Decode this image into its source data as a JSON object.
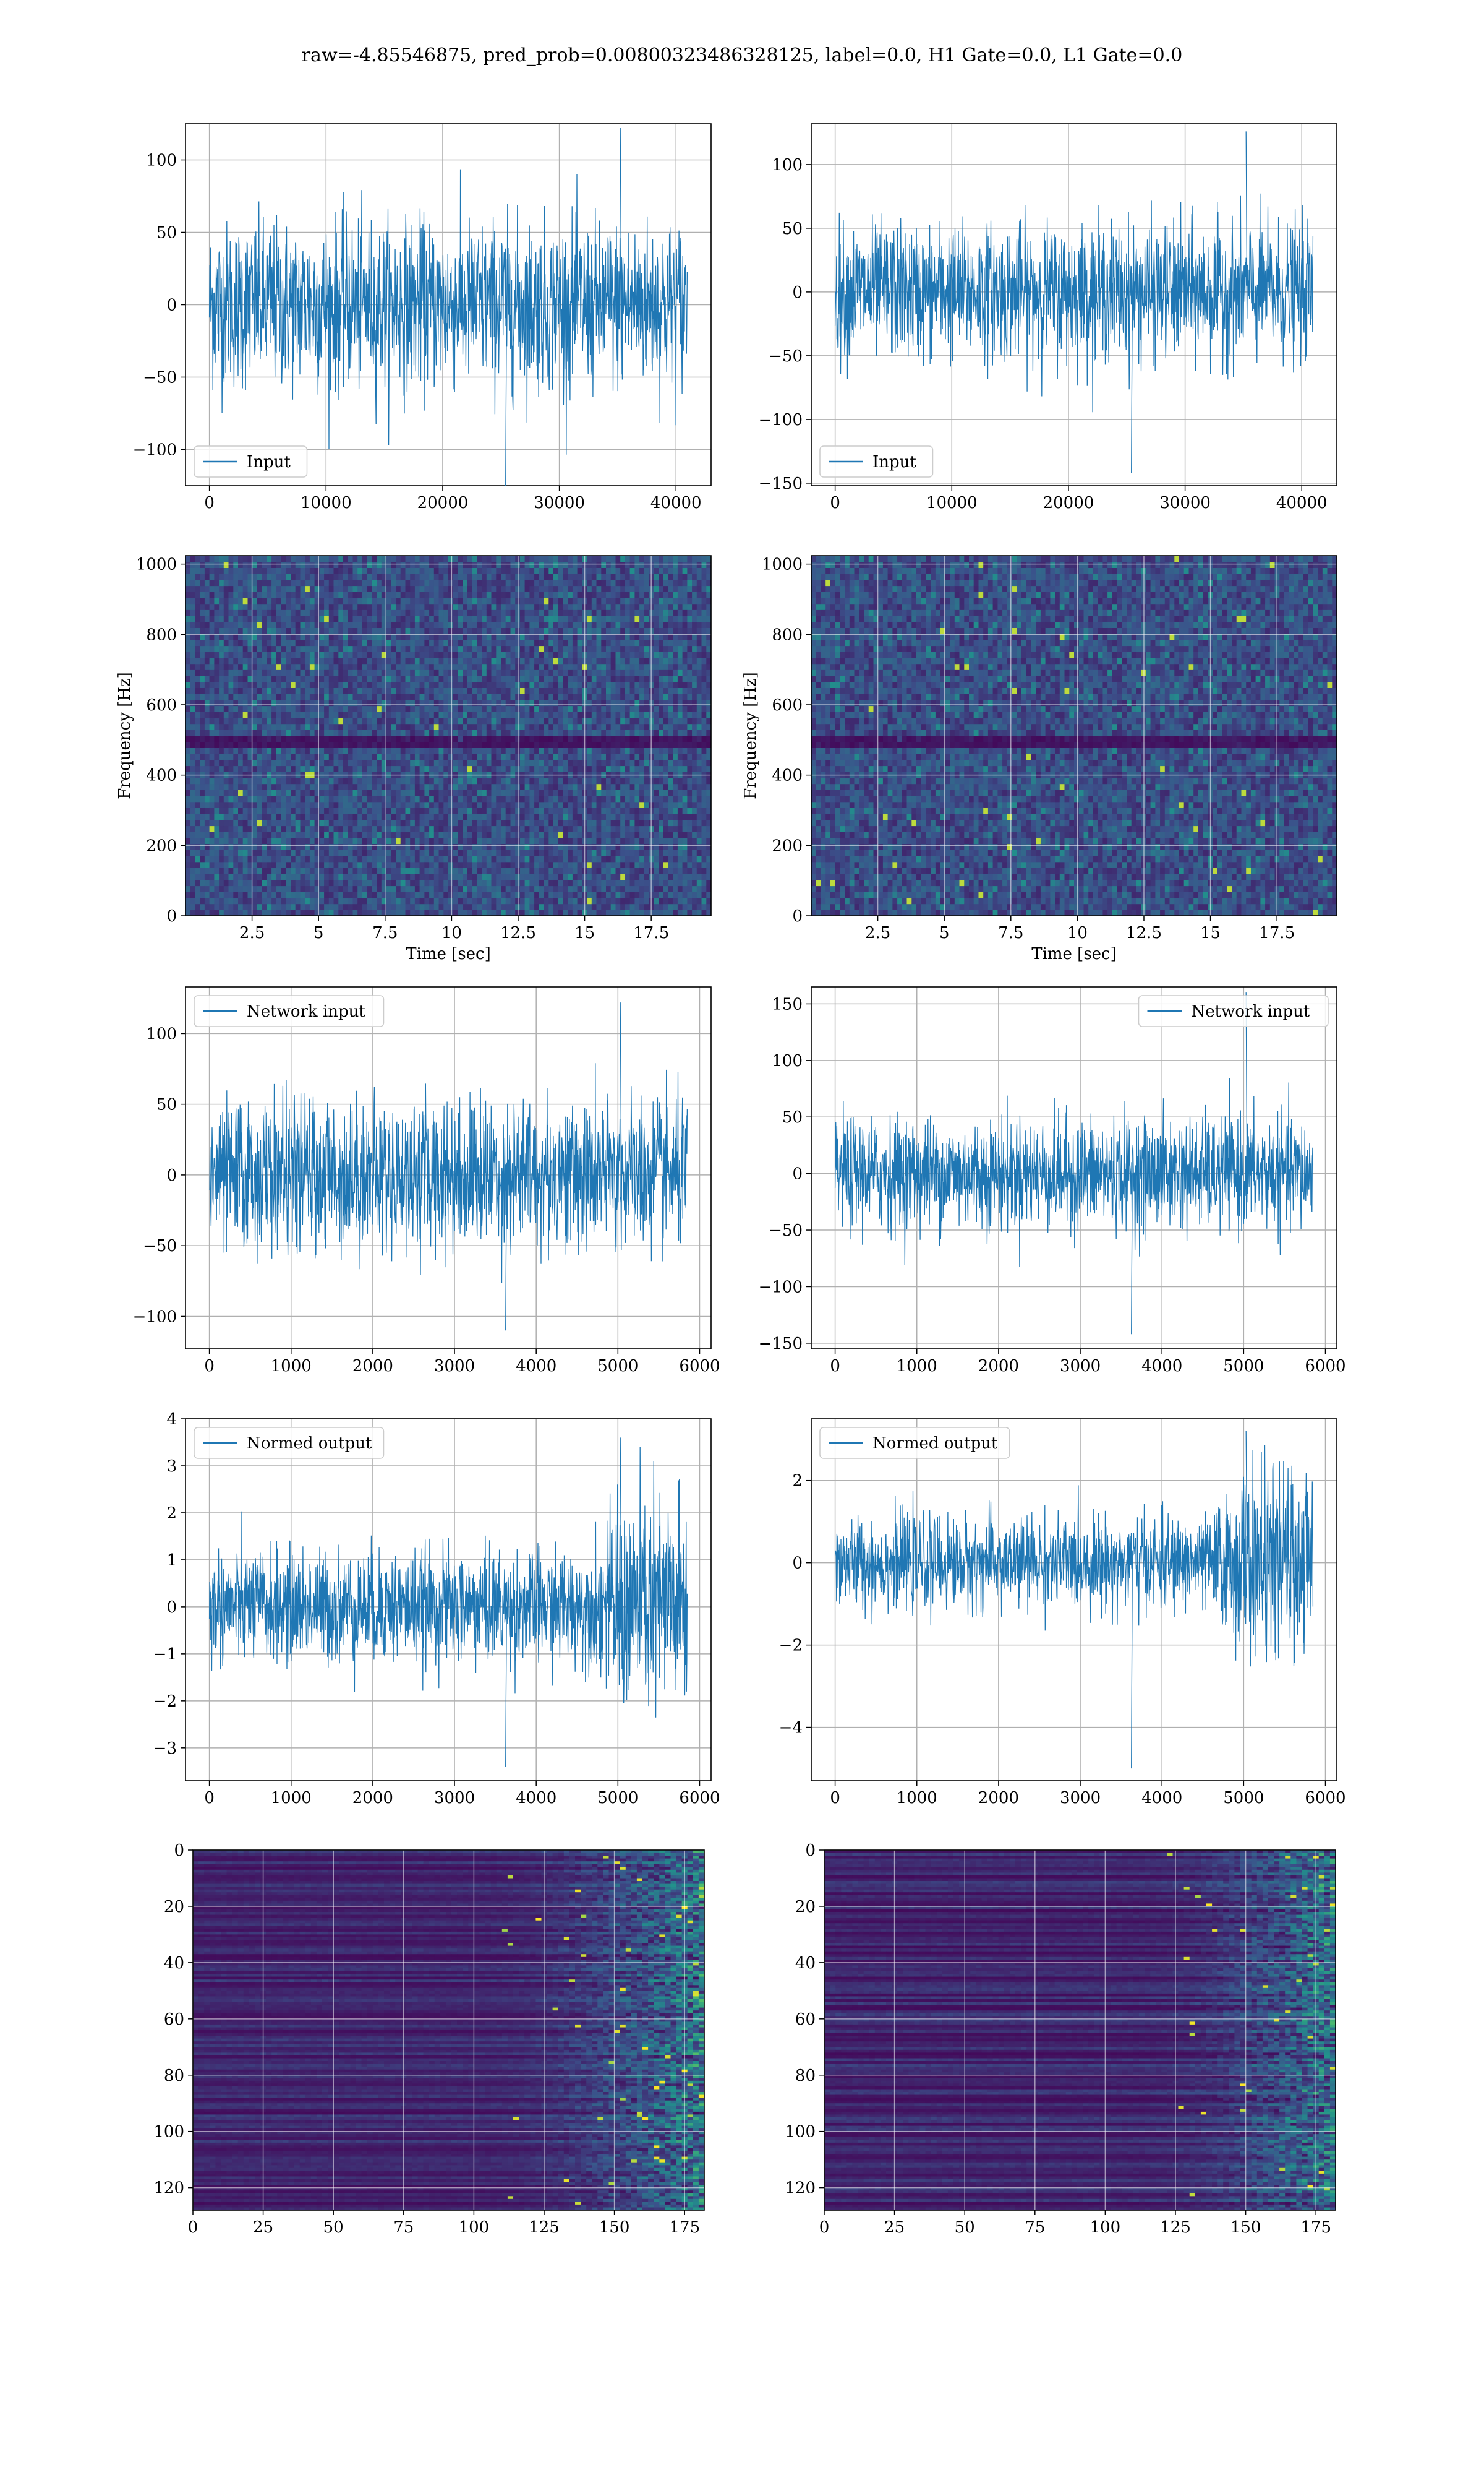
{
  "figure": {
    "title": "raw=-4.85546875, pred_prob=0.00800323486328125, label=0.0, H1 Gate=0.0, L1 Gate=0.0"
  },
  "colors": {
    "line": "#1f77b4",
    "grid": "#b0b0b0",
    "axes": "#000000",
    "heatmap_low": "#440154",
    "heatmap_mid": "#21918c",
    "heatmap_high": "#fde725"
  },
  "chart_data": [
    {
      "id": "input-h1",
      "type": "line",
      "legend": "Input",
      "legend_loc": "lower left",
      "grid": true,
      "xlim": [
        -2048,
        43008
      ],
      "ylim": [
        -125,
        125
      ],
      "xticks": [
        0,
        10000,
        20000,
        30000,
        40000
      ],
      "yticks": [
        -100,
        -50,
        0,
        50,
        100
      ],
      "x_range": [
        0,
        40960
      ],
      "envelope": [
        -65,
        68
      ],
      "spike": [
        -126,
        122
      ]
    },
    {
      "id": "input-l1",
      "type": "line",
      "legend": "Input",
      "legend_loc": "lower left",
      "grid": true,
      "xlim": [
        -2048,
        43008
      ],
      "ylim": [
        -152,
        132
      ],
      "xticks": [
        0,
        10000,
        20000,
        30000,
        40000
      ],
      "yticks": [
        -150,
        -100,
        -50,
        0,
        50,
        100
      ],
      "x_range": [
        0,
        40960
      ],
      "envelope": [
        -60,
        62
      ],
      "spike": [
        -142,
        126
      ]
    },
    {
      "id": "spec-h1",
      "type": "heatmap",
      "xlabel": "Time [sec]",
      "ylabel": "Frequency [Hz]",
      "grid": true,
      "xlim": [
        0,
        19.75
      ],
      "ylim": [
        0,
        1024
      ],
      "xticks": [
        2.5,
        5.0,
        7.5,
        10.0,
        12.5,
        15.0,
        17.5
      ],
      "yticks": [
        0,
        200,
        400,
        600,
        800,
        1000
      ],
      "dark_band": [
        480,
        520
      ]
    },
    {
      "id": "spec-l1",
      "type": "heatmap",
      "xlabel": "Time [sec]",
      "ylabel": "Frequency [Hz]",
      "grid": true,
      "xlim": [
        0,
        19.75
      ],
      "ylim": [
        0,
        1024
      ],
      "xticks": [
        2.5,
        5.0,
        7.5,
        10.0,
        12.5,
        15.0,
        17.5
      ],
      "yticks": [
        0,
        200,
        400,
        600,
        800,
        1000
      ],
      "dark_band": [
        480,
        515
      ]
    },
    {
      "id": "net-h1",
      "type": "line",
      "legend": "Network input",
      "legend_loc": "upper left",
      "grid": true,
      "xlim": [
        -292,
        6140
      ],
      "ylim": [
        -123,
        133
      ],
      "xticks": [
        0,
        1000,
        2000,
        3000,
        4000,
        5000,
        6000
      ],
      "yticks": [
        -100,
        -50,
        0,
        50,
        100
      ],
      "x_range": [
        0,
        5848
      ],
      "envelope": [
        -60,
        62
      ],
      "spike": [
        -110,
        122
      ]
    },
    {
      "id": "net-l1",
      "type": "line",
      "legend": "Network input",
      "legend_loc": "upper right",
      "grid": true,
      "xlim": [
        -292,
        6140
      ],
      "ylim": [
        -155,
        165
      ],
      "xticks": [
        0,
        1000,
        2000,
        3000,
        4000,
        5000,
        6000
      ],
      "yticks": [
        -150,
        -100,
        -50,
        0,
        50,
        100,
        150
      ],
      "x_range": [
        0,
        5848
      ],
      "envelope": [
        -55,
        58
      ],
      "spike": [
        -142,
        160
      ]
    },
    {
      "id": "norm-h1",
      "type": "line",
      "legend": "Normed output",
      "legend_loc": "upper left",
      "grid": true,
      "xlim": [
        -292,
        6140
      ],
      "ylim": [
        -3.7,
        4.0
      ],
      "xticks": [
        0,
        1000,
        2000,
        3000,
        4000,
        5000,
        6000
      ],
      "yticks": [
        -3,
        -2,
        -1,
        0,
        1,
        2,
        3,
        4
      ],
      "x_range": [
        0,
        5848
      ],
      "envelope": [
        -1.3,
        1.4
      ],
      "burst_start": 4700,
      "burst_amp": 3.4,
      "spike": [
        -3.4,
        3.6
      ]
    },
    {
      "id": "norm-l1",
      "type": "line",
      "legend": "Normed output",
      "legend_loc": "upper left",
      "grid": true,
      "xlim": [
        -292,
        6140
      ],
      "ylim": [
        -5.3,
        3.5
      ],
      "xticks": [
        0,
        1000,
        2000,
        3000,
        4000,
        5000,
        6000
      ],
      "yticks": [
        -4,
        -2,
        0,
        2
      ],
      "x_range": [
        0,
        5848
      ],
      "envelope": [
        -1.2,
        1.3
      ],
      "burst_start": 4600,
      "burst_amp": 3.1,
      "spike": [
        -5.0,
        3.2
      ]
    },
    {
      "id": "feat-h1",
      "type": "heatmap",
      "grid": true,
      "xlim": [
        0,
        182
      ],
      "ylim": [
        128,
        0
      ],
      "xticks": [
        0,
        25,
        50,
        75,
        100,
        125,
        150,
        175
      ],
      "yticks": [
        0,
        20,
        40,
        60,
        80,
        100,
        120
      ],
      "active_from": 100
    },
    {
      "id": "feat-l1",
      "type": "heatmap",
      "grid": true,
      "xlim": [
        0,
        182
      ],
      "ylim": [
        128,
        0
      ],
      "xticks": [
        0,
        25,
        50,
        75,
        100,
        125,
        150,
        175
      ],
      "yticks": [
        0,
        20,
        40,
        60,
        80,
        100,
        120
      ],
      "active_from": 110
    }
  ]
}
